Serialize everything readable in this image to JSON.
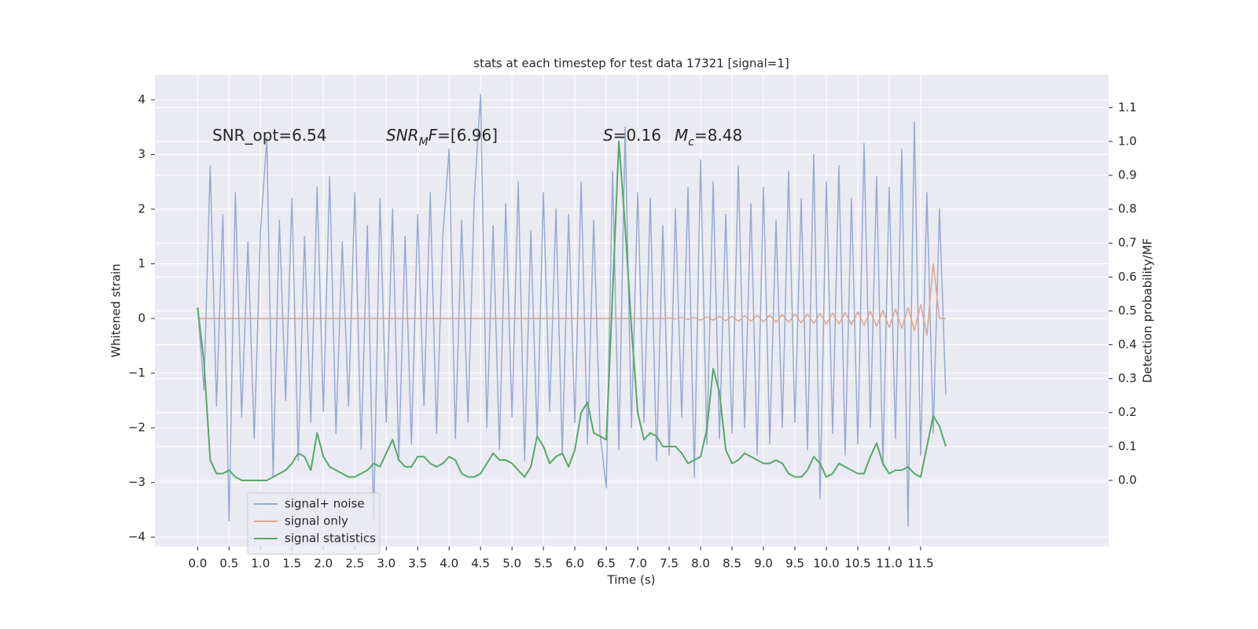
{
  "chart_data": {
    "type": "line",
    "title": "stats at each timestep for test data 17321 [signal=1]",
    "xlabel": "Time (s)",
    "ylabel": "Whitened strain",
    "y2label": "Detection probability/MF",
    "grid": true,
    "legend": "lower left",
    "xlim": [
      -0.68,
      14.49
    ],
    "ylim": [
      -4.17,
      4.46
    ],
    "y2lim": [
      -0.195,
      1.197
    ],
    "xticks": [
      {
        "value": 0,
        "label": "0.0"
      },
      0.5,
      {
        "value": 1,
        "label": "1.0"
      },
      1.5,
      {
        "value": 2,
        "label": "2.0"
      },
      2.5,
      {
        "value": 3,
        "label": "3.0"
      },
      3.5,
      {
        "value": 4,
        "label": "4.0"
      },
      4.5,
      {
        "value": 5,
        "label": "5.0"
      },
      5.5,
      {
        "value": 6,
        "label": "6.0"
      },
      6.5,
      {
        "value": 7,
        "label": "7.0"
      },
      7.5,
      {
        "value": 8,
        "label": "8.0"
      },
      8.5,
      {
        "value": 9,
        "label": "9.0"
      },
      9.5,
      {
        "value": 10,
        "label": "10.0"
      },
      10.5,
      {
        "value": 11,
        "label": "11.0"
      },
      11.5
    ],
    "yticks": [
      {
        "value": -4,
        "label": "−4"
      },
      {
        "value": -3,
        "label": "−3"
      },
      {
        "value": -2,
        "label": "−2"
      },
      {
        "value": -1,
        "label": "−1"
      },
      0,
      1,
      2,
      3,
      4
    ],
    "y2ticks": [
      {
        "value": 0,
        "label": "0.0"
      },
      0.1,
      0.2,
      0.3,
      0.4,
      0.5,
      0.6,
      0.7,
      0.8,
      0.9,
      {
        "value": 1,
        "label": "1.0"
      },
      1.1
    ],
    "annotations": [
      {
        "parts": [
          {
            "text": "SNR_opt=6.54",
            "style": "normal"
          }
        ]
      },
      {
        "parts": [
          {
            "text": "SNR",
            "style": "italic"
          },
          {
            "text": "M",
            "style": "sub-italic"
          },
          {
            "text": "F",
            "style": "italic"
          },
          {
            "text": "=[6.96]",
            "style": "normal"
          }
        ]
      },
      {
        "parts": [
          {
            "text": "S",
            "style": "italic"
          },
          {
            "text": "=0.16",
            "style": "normal"
          }
        ]
      },
      {
        "parts": [
          {
            "text": "M",
            "style": "italic"
          },
          {
            "text": "c",
            "style": "sub-italic"
          },
          {
            "text": "=8.48",
            "style": "normal"
          }
        ]
      }
    ],
    "x": [
      0,
      0.1,
      0.2,
      0.3,
      0.4,
      0.5,
      0.6,
      0.7,
      0.8,
      0.9,
      1,
      1.1,
      1.2,
      1.3,
      1.4,
      1.5,
      1.6,
      1.7,
      1.8,
      1.9,
      2,
      2.1,
      2.2,
      2.3,
      2.4,
      2.5,
      2.6,
      2.7,
      2.8,
      2.9,
      3,
      3.1,
      3.2,
      3.3,
      3.4,
      3.5,
      3.6,
      3.7,
      3.8,
      3.9,
      4,
      4.1,
      4.2,
      4.3,
      4.4,
      4.5,
      4.6,
      4.7,
      4.8,
      4.9,
      5,
      5.1,
      5.2,
      5.3,
      5.4,
      5.5,
      5.6,
      5.7,
      5.8,
      5.9,
      6,
      6.1,
      6.2,
      6.3,
      6.4,
      6.5,
      6.6,
      6.7,
      6.8,
      6.9,
      7,
      7.1,
      7.2,
      7.3,
      7.4,
      7.5,
      7.6,
      7.7,
      7.8,
      7.9,
      8,
      8.1,
      8.2,
      8.3,
      8.4,
      8.5,
      8.6,
      8.7,
      8.8,
      8.9,
      9,
      9.1,
      9.2,
      9.3,
      9.4,
      9.5,
      9.6,
      9.7,
      9.8,
      9.9,
      10,
      10.1,
      10.2,
      10.3,
      10.4,
      10.5,
      10.6,
      10.7,
      10.8,
      10.9,
      11,
      11.1,
      11.2,
      11.3,
      11.4,
      11.5,
      11.6,
      11.7,
      11.8,
      11.9
    ],
    "series": [
      {
        "name": "signal+ noise",
        "color": "#98aad0",
        "axis": "y",
        "values": [
          0.2,
          -1.3,
          2.8,
          -1.6,
          1.9,
          -3.7,
          2.3,
          -1.8,
          1.4,
          -2.2,
          1.6,
          3.3,
          -2.9,
          1.8,
          -1.5,
          2.2,
          -2.6,
          1.5,
          -1.9,
          2.4,
          -1.7,
          2.6,
          -2.1,
          1.4,
          -1.6,
          2.3,
          -2.4,
          1.7,
          -3.7,
          2.2,
          -1.9,
          2.0,
          -2.6,
          1.5,
          -2.3,
          1.9,
          -1.6,
          2.3,
          -2.1,
          1.5,
          3.1,
          -2.2,
          1.8,
          -1.9,
          2.2,
          4.1,
          -2.0,
          1.7,
          -2.4,
          2.1,
          -1.8,
          2.5,
          -2.6,
          1.6,
          -2.2,
          2.3,
          -1.7,
          2.0,
          -2.5,
          1.9,
          -1.9,
          2.5,
          -2.3,
          1.8,
          -2.1,
          -3.1,
          2.7,
          -2.4,
          3.5,
          -2.0,
          2.3,
          -1.9,
          2.2,
          -2.6,
          1.7,
          -2.5,
          2.0,
          -1.8,
          2.4,
          -2.9,
          2.9,
          -2.3,
          2.5,
          -2.2,
          1.9,
          -2.1,
          2.8,
          -2.0,
          2.1,
          -2.5,
          2.4,
          -2.3,
          1.8,
          -2.0,
          2.7,
          -1.9,
          2.2,
          -2.4,
          3.0,
          -3.3,
          2.5,
          -2.1,
          2.8,
          -2.5,
          2.2,
          -2.3,
          3.2,
          -2.0,
          2.6,
          -2.7,
          2.4,
          -2.2,
          3.1,
          -3.8,
          3.6,
          -2.5,
          2.3,
          -2.1,
          2.0,
          -1.4
        ]
      },
      {
        "name": "signal only",
        "color": "#e0a487",
        "axis": "y",
        "values": [
          0,
          0,
          0,
          0,
          0,
          0,
          0,
          0,
          0,
          0,
          0,
          0,
          0,
          0,
          0,
          0,
          0,
          0,
          0,
          0,
          0,
          0,
          0,
          0,
          0,
          0,
          0,
          0,
          0,
          0,
          0,
          0,
          0,
          0,
          0,
          0,
          0,
          0,
          0,
          0,
          0,
          0,
          0,
          0,
          0,
          0,
          0,
          0,
          0,
          0,
          0,
          0,
          0,
          0,
          0,
          0,
          0,
          0,
          0,
          0,
          0,
          0,
          0,
          0,
          0,
          0,
          0,
          0,
          0,
          0,
          0,
          0,
          0,
          0,
          0,
          0.01,
          -0.01,
          0.02,
          -0.02,
          0.02,
          -0.03,
          0.03,
          -0.03,
          0.04,
          -0.04,
          0.04,
          -0.05,
          0.05,
          -0.05,
          0.06,
          -0.06,
          0.06,
          -0.07,
          0.07,
          -0.07,
          0.08,
          -0.08,
          0.08,
          -0.09,
          0.09,
          -0.1,
          0.1,
          -0.1,
          0.11,
          -0.11,
          0.12,
          -0.12,
          0.13,
          -0.14,
          0.15,
          -0.16,
          0.17,
          -0.18,
          0.2,
          -0.22,
          0.25,
          -0.3,
          1.0,
          0,
          0
        ]
      },
      {
        "name": "signal statistics",
        "color": "#55a868",
        "axis": "y2",
        "values": [
          0.51,
          0.35,
          0.06,
          0.02,
          0.02,
          0.03,
          0.01,
          0.0,
          0.0,
          0.0,
          0.0,
          0.0,
          0.01,
          0.02,
          0.03,
          0.05,
          0.08,
          0.07,
          0.03,
          0.14,
          0.07,
          0.04,
          0.03,
          0.02,
          0.01,
          0.01,
          0.02,
          0.03,
          0.05,
          0.04,
          0.08,
          0.12,
          0.06,
          0.04,
          0.04,
          0.07,
          0.07,
          0.05,
          0.04,
          0.05,
          0.07,
          0.06,
          0.02,
          0.01,
          0.01,
          0.02,
          0.05,
          0.08,
          0.06,
          0.06,
          0.05,
          0.03,
          0.01,
          0.04,
          0.13,
          0.1,
          0.05,
          0.07,
          0.08,
          0.04,
          0.09,
          0.2,
          0.23,
          0.14,
          0.13,
          0.12,
          0.55,
          1.0,
          0.75,
          0.45,
          0.2,
          0.12,
          0.14,
          0.13,
          0.1,
          0.1,
          0.1,
          0.08,
          0.05,
          0.06,
          0.07,
          0.15,
          0.33,
          0.26,
          0.09,
          0.05,
          0.06,
          0.08,
          0.07,
          0.06,
          0.05,
          0.05,
          0.06,
          0.05,
          0.02,
          0.01,
          0.01,
          0.03,
          0.07,
          0.05,
          0.01,
          0.02,
          0.05,
          0.04,
          0.03,
          0.02,
          0.02,
          0.07,
          0.11,
          0.05,
          0.02,
          0.03,
          0.03,
          0.04,
          0.02,
          0.01,
          0.1,
          0.19,
          0.16,
          0.1
        ]
      }
    ]
  }
}
